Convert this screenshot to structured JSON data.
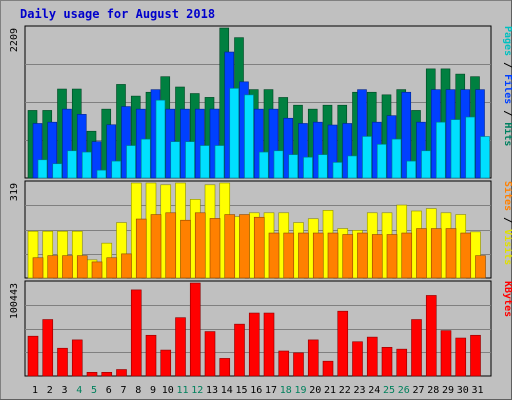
{
  "title": "Daily usage for August 2018",
  "colors": {
    "background": "#c0c0c0",
    "title": "#0000cc",
    "hits": "#008040",
    "files": "#0040ff",
    "pages": "#00e0ff",
    "visits": "#ffff00",
    "sites": "#ff8000",
    "kbytes": "#ff0000",
    "weekday_label": "#000000",
    "weekend_label": "#00805c"
  },
  "chart_data": [
    {
      "type": "bar",
      "name": "hits-files-pages",
      "categories": [
        "1",
        "2",
        "3",
        "4",
        "5",
        "6",
        "7",
        "8",
        "9",
        "10",
        "11",
        "12",
        "13",
        "14",
        "15",
        "16",
        "17",
        "18",
        "19",
        "20",
        "21",
        "22",
        "23",
        "24",
        "25",
        "26",
        "27",
        "28",
        "29",
        "30",
        "31"
      ],
      "weekend_days": [
        "4",
        "5",
        "11",
        "12",
        "18",
        "19",
        "25",
        "26"
      ],
      "max_label": "2209",
      "ylim": [
        0,
        2209
      ],
      "axis_text": [
        {
          "label": "Pages",
          "color": "#00c0c0"
        },
        {
          "label": " / ",
          "color": "#000000"
        },
        {
          "label": "Files",
          "color": "#0040ff"
        },
        {
          "label": " / ",
          "color": "#000000"
        },
        {
          "label": "Hits",
          "color": "#008060"
        }
      ],
      "series": [
        {
          "name": "Hits",
          "color": "#008040",
          "values": [
            995,
            995,
            1310,
            1310,
            689,
            1014,
            1378,
            1206,
            1263,
            1492,
            1340,
            1244,
            1187,
            2209,
            2067,
            1302,
            1302,
            1186,
            1072,
            1014,
            1072,
            1072,
            1263,
            1263,
            1225,
            1302,
            995,
            1607,
            1607,
            1530,
            1492
          ]
        },
        {
          "name": "Files",
          "color": "#0040ff",
          "values": [
            803,
            822,
            1014,
            937,
            535,
            784,
            1052,
            1014,
            1301,
            1014,
            1014,
            1014,
            1015,
            1855,
            1416,
            1014,
            1014,
            880,
            803,
            822,
            780,
            803,
            1301,
            822,
            918,
            1263,
            822,
            1301,
            1301,
            1301,
            1301
          ]
        },
        {
          "name": "Pages",
          "color": "#00e0ff",
          "values": [
            268,
            210,
            401,
            382,
            115,
            249,
            478,
            573,
            1146,
            535,
            535,
            478,
            478,
            1320,
            1224,
            382,
            401,
            344,
            306,
            344,
            230,
            325,
            612,
            496,
            573,
            249,
            401,
            822,
            860,
            898,
            611
          ]
        }
      ]
    },
    {
      "type": "bar",
      "name": "visits-sites",
      "categories": [
        "1",
        "2",
        "3",
        "4",
        "5",
        "6",
        "7",
        "8",
        "9",
        "10",
        "11",
        "12",
        "13",
        "14",
        "15",
        "16",
        "17",
        "18",
        "19",
        "20",
        "21",
        "22",
        "23",
        "24",
        "25",
        "26",
        "27",
        "28",
        "29",
        "30",
        "31"
      ],
      "max_label": "319",
      "ylim": [
        0,
        319
      ],
      "axis_text": [
        {
          "label": "Sites",
          "color": "#ff8000"
        },
        {
          "label": " / ",
          "color": "#000000"
        },
        {
          "label": "Visits",
          "color": "#e0e000"
        }
      ],
      "series": [
        {
          "name": "Visits",
          "color": "#ffff00",
          "values": [
            157,
            157,
            157,
            157,
            61,
            117,
            186,
            319,
            319,
            313,
            319,
            264,
            313,
            319,
            206,
            219,
            219,
            219,
            186,
            199,
            227,
            166,
            160,
            219,
            219,
            245,
            225,
            233,
            219,
            213,
            155
          ]
        },
        {
          "name": "Sites",
          "color": "#ff8000",
          "values": [
            68,
            75,
            75,
            75,
            54,
            68,
            81,
            198,
            213,
            219,
            194,
            219,
            200,
            213,
            213,
            204,
            151,
            151,
            151,
            151,
            151,
            146,
            151,
            146,
            146,
            151,
            166,
            166,
            166,
            151,
            75
          ]
        }
      ]
    },
    {
      "type": "bar",
      "name": "kbytes",
      "categories": [
        "1",
        "2",
        "3",
        "4",
        "5",
        "6",
        "7",
        "8",
        "9",
        "10",
        "11",
        "12",
        "13",
        "14",
        "15",
        "16",
        "17",
        "18",
        "19",
        "20",
        "21",
        "22",
        "23",
        "24",
        "25",
        "26",
        "27",
        "28",
        "29",
        "30",
        "31"
      ],
      "max_label": "100443",
      "ylim": [
        0,
        100443
      ],
      "axis_text": [
        {
          "label": "KBytes",
          "color": "#ff0000"
        }
      ],
      "series": [
        {
          "name": "KBytes",
          "color": "#ff0000",
          "values": [
            43000,
            61000,
            30000,
            39000,
            4000,
            4000,
            7000,
            93000,
            44000,
            28000,
            63000,
            100443,
            48000,
            19000,
            56000,
            68000,
            68000,
            27000,
            25000,
            39000,
            16000,
            70000,
            37000,
            42000,
            31000,
            29000,
            61000,
            87000,
            49000,
            41000,
            44000
          ]
        }
      ]
    }
  ]
}
